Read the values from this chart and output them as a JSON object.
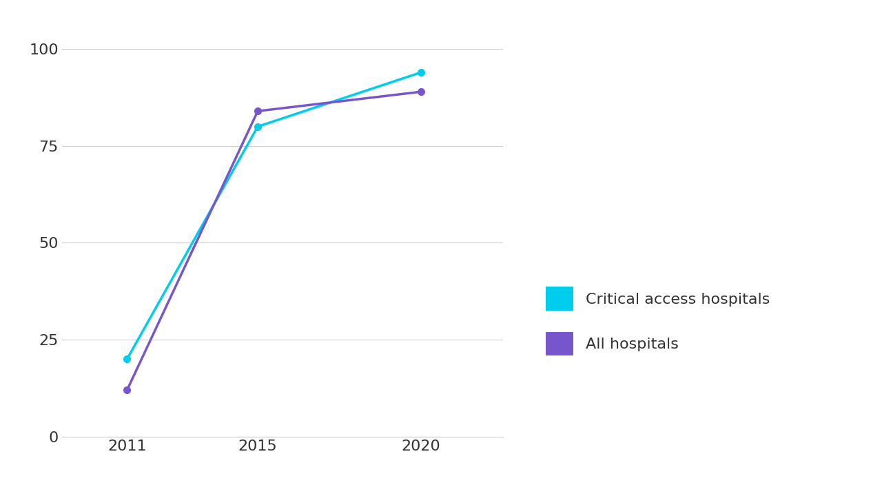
{
  "years": [
    2011,
    2015,
    2020
  ],
  "critical_access": [
    20,
    80,
    94
  ],
  "all_hospitals": [
    12,
    84,
    89
  ],
  "critical_access_color": "#00CCEE",
  "all_hospitals_color": "#7755CC",
  "critical_access_label": "Critical access hospitals",
  "all_hospitals_label": "All hospitals",
  "ylim": [
    0,
    105
  ],
  "yticks": [
    0,
    25,
    50,
    75,
    100
  ],
  "xticks": [
    2011,
    2015,
    2020
  ],
  "xlim_left": 2009.0,
  "xlim_right": 2022.5,
  "background_color": "#FFFFFF",
  "grid_color": "#CCCCCC",
  "line_width": 2.5,
  "marker_size": 7,
  "legend_fontsize": 16,
  "tick_fontsize": 16
}
